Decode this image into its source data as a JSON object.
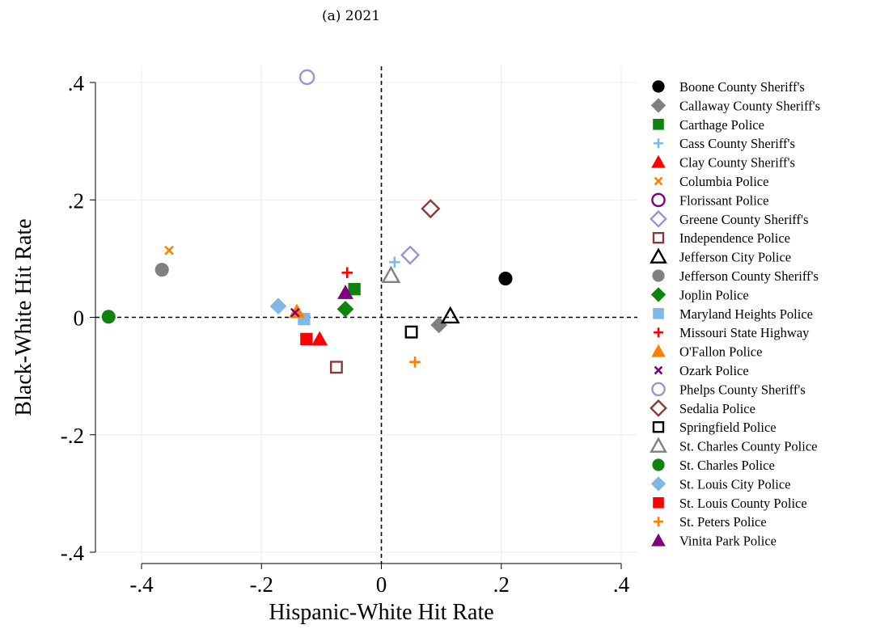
{
  "chart_data": {
    "type": "scatter",
    "title": "(a) 2021",
    "xlabel": "Hispanic-White Hit Rate",
    "ylabel": "Black-White Hit Rate",
    "xlim": [
      -0.4,
      0.4
    ],
    "ylim": [
      -0.4,
      0.4
    ],
    "xticks": [
      -0.4,
      -0.2,
      0,
      0.2,
      0.4
    ],
    "xtick_labels": [
      "-.4",
      "-.2",
      "0",
      ".2",
      ".4"
    ],
    "yticks": [
      -0.4,
      -0.2,
      0,
      0.2,
      0.4
    ],
    "ytick_labels": [
      "-.4",
      "-.2",
      "0",
      ".2",
      ".4"
    ],
    "grid": true,
    "reference_lines": {
      "x": 0,
      "y": 0,
      "style": "dashed"
    },
    "legend_position": "right",
    "series": [
      {
        "name": "Boone County Sheriff's",
        "marker": "circle",
        "filled": true,
        "color": "#000000",
        "x": 0.207,
        "y": 0.066
      },
      {
        "name": "Callaway County Sheriff's",
        "marker": "diamond",
        "filled": true,
        "color": "#808080",
        "x": 0.096,
        "y": -0.013
      },
      {
        "name": "Carthage Police",
        "marker": "square",
        "filled": true,
        "color": "#0e830e",
        "x": -0.045,
        "y": 0.048
      },
      {
        "name": "Cass County Sheriff's",
        "marker": "plus",
        "filled": false,
        "color": "#7fb8e6",
        "x": 0.022,
        "y": 0.094
      },
      {
        "name": "Clay County Sheriff's",
        "marker": "triangle",
        "filled": true,
        "color": "#ff0000",
        "x": -0.103,
        "y": -0.037
      },
      {
        "name": "Columbia Police",
        "marker": "x",
        "filled": false,
        "color": "#ff8000",
        "x": -0.354,
        "y": 0.114
      },
      {
        "name": "Florissant Police",
        "marker": "circle",
        "filled": false,
        "color": "#800080",
        "x": null,
        "y": null
      },
      {
        "name": "Greene County Sheriff's",
        "marker": "diamond",
        "filled": false,
        "color": "#9b93d4",
        "x": 0.048,
        "y": 0.106
      },
      {
        "name": "Independence Police",
        "marker": "square",
        "filled": false,
        "color": "#8b3a3a",
        "x": -0.075,
        "y": -0.085
      },
      {
        "name": "Jefferson City Police",
        "marker": "triangle",
        "filled": false,
        "color": "#000000",
        "x": 0.115,
        "y": 0.002
      },
      {
        "name": "Jefferson County Sheriff's",
        "marker": "circle",
        "filled": true,
        "color": "#808080",
        "x": -0.366,
        "y": 0.081
      },
      {
        "name": "Joplin Police",
        "marker": "diamond",
        "filled": true,
        "color": "#0e830e",
        "x": -0.06,
        "y": 0.014
      },
      {
        "name": "Maryland Heights Police",
        "marker": "square",
        "filled": true,
        "color": "#7fb8e6",
        "x": -0.129,
        "y": -0.003
      },
      {
        "name": "Missouri State Highway",
        "marker": "plus",
        "filled": false,
        "color": "#ff0000",
        "x": -0.057,
        "y": 0.076
      },
      {
        "name": "O'Fallon Police",
        "marker": "triangle",
        "filled": true,
        "color": "#ff8000",
        "x": -0.141,
        "y": 0.01
      },
      {
        "name": "Ozark Police",
        "marker": "x",
        "filled": false,
        "color": "#800080",
        "x": -0.144,
        "y": 0.008
      },
      {
        "name": "Phelps County Sheriff's",
        "marker": "circle",
        "filled": false,
        "color": "#9b93d4",
        "x": -0.124,
        "y": 0.409
      },
      {
        "name": "Sedalia Police",
        "marker": "diamond",
        "filled": false,
        "color": "#8b3a3a",
        "x": 0.082,
        "y": 0.185
      },
      {
        "name": "Springfield Police",
        "marker": "square",
        "filled": false,
        "color": "#000000",
        "x": 0.05,
        "y": -0.025
      },
      {
        "name": "St. Charles County Police",
        "marker": "triangle",
        "filled": false,
        "color": "#808080",
        "x": 0.016,
        "y": 0.071
      },
      {
        "name": "St. Charles Police",
        "marker": "circle",
        "filled": true,
        "color": "#0e830e",
        "x": -0.455,
        "y": 0.001
      },
      {
        "name": "St. Louis City Police",
        "marker": "diamond",
        "filled": true,
        "color": "#7fb8e6",
        "x": -0.172,
        "y": 0.019
      },
      {
        "name": "St. Louis County Police",
        "marker": "square",
        "filled": true,
        "color": "#ff0000",
        "x": -0.125,
        "y": -0.037
      },
      {
        "name": "St. Peters Police",
        "marker": "plus",
        "filled": false,
        "color": "#ff8000",
        "x": 0.056,
        "y": -0.076
      },
      {
        "name": "Vinita Park Police",
        "marker": "triangle",
        "filled": true,
        "color": "#800080",
        "x": -0.06,
        "y": 0.042
      }
    ]
  }
}
